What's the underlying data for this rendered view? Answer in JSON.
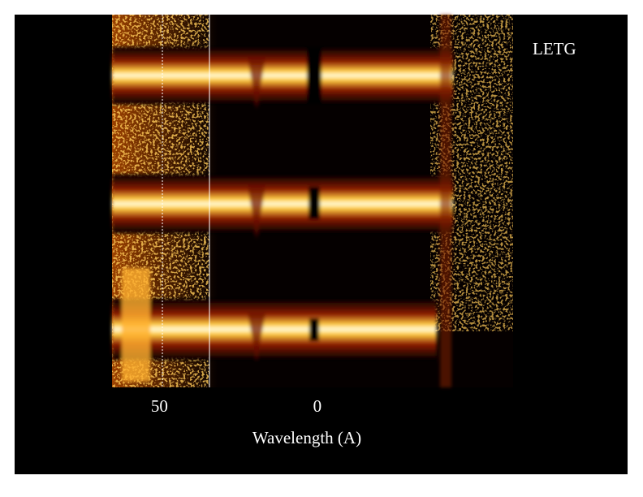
{
  "chart_data": {
    "type": "image",
    "annotation": "LETG",
    "xlabel": "Wavelength (A)",
    "xlim": [
      65,
      -62
    ],
    "xticks": [
      50,
      0
    ]
  }
}
